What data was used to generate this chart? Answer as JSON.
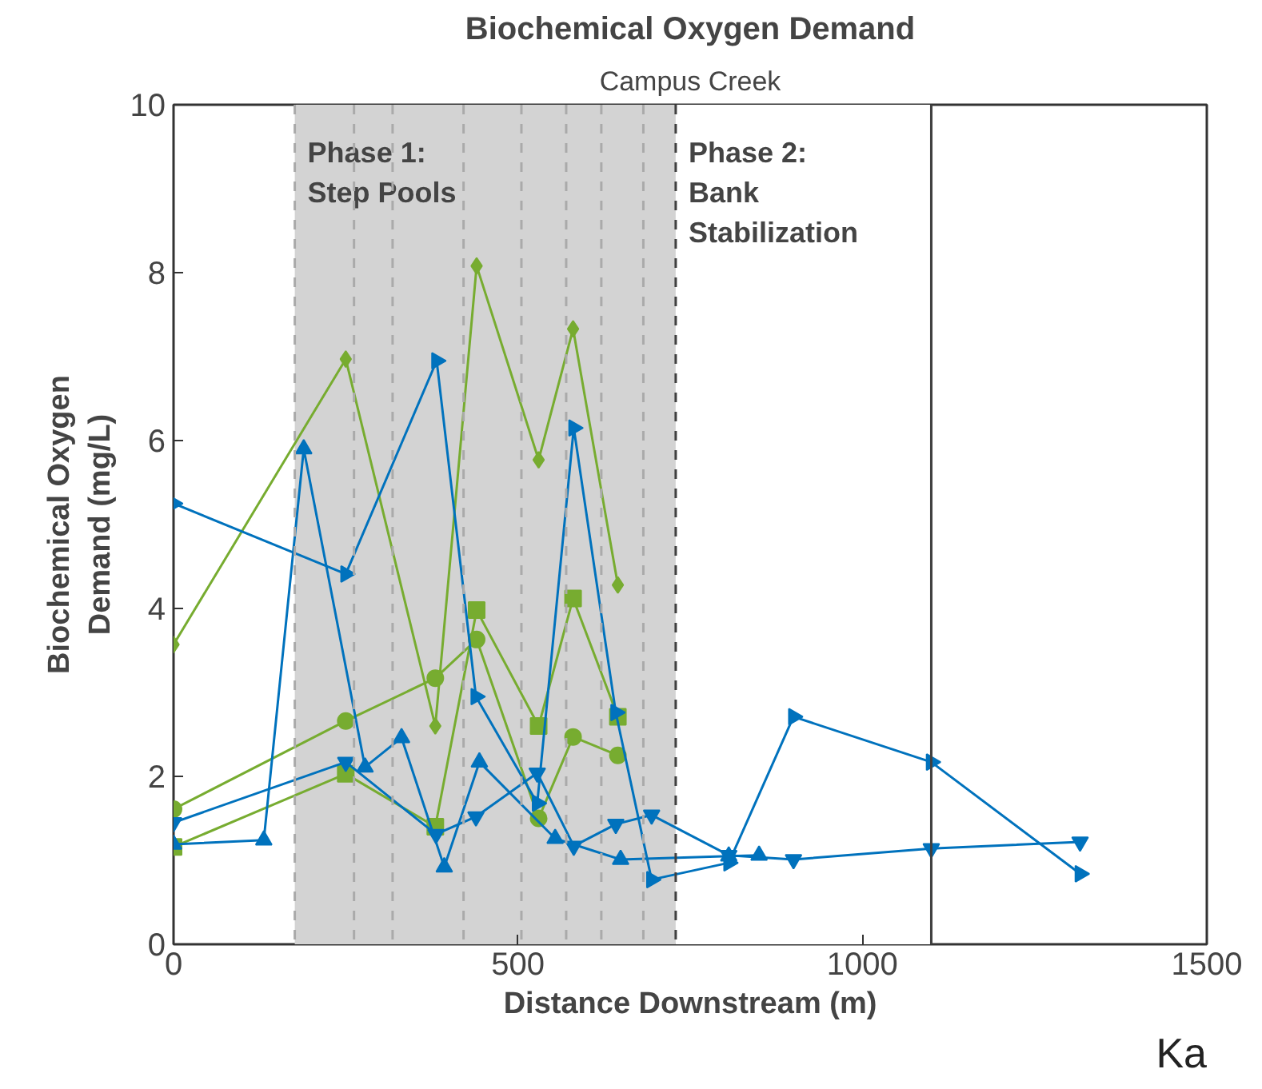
{
  "chart_data": {
    "type": "line",
    "title": "Biochemical Oxygen Demand",
    "subtitle": "Campus Creek",
    "xlabel": "Distance Downstream (m)",
    "ylabel": "Biochemical Oxygen\nDemand (mg/L)",
    "xlim": [
      0,
      1500
    ],
    "ylim": [
      0,
      10
    ],
    "xticks": [
      0,
      500,
      1000,
      1500
    ],
    "yticks": [
      0,
      2,
      4,
      6,
      8,
      10
    ],
    "grid": false,
    "series": [
      {
        "color": "#77ac30",
        "marker": "diamond",
        "x": [
          0,
          250,
          380,
          440,
          530,
          580,
          645
        ],
        "values": [
          3.57,
          6.97,
          2.6,
          8.08,
          5.77,
          7.33,
          4.28
        ]
      },
      {
        "color": "#77ac30",
        "marker": "square",
        "x": [
          0,
          250,
          380,
          440,
          530,
          580,
          645
        ],
        "values": [
          1.16,
          2.03,
          1.4,
          3.98,
          2.6,
          4.12,
          2.71
        ]
      },
      {
        "color": "#77ac30",
        "marker": "circle",
        "x": [
          0,
          250,
          380,
          440,
          530,
          580,
          645
        ],
        "values": [
          1.61,
          2.66,
          3.17,
          3.63,
          1.5,
          2.47,
          2.25
        ]
      },
      {
        "color": "#0072bd",
        "marker": "triangle_right",
        "x": [
          0,
          250,
          382,
          439,
          528,
          581,
          642,
          694,
          806,
          900,
          1100,
          1316
        ],
        "values": [
          5.25,
          4.41,
          6.95,
          2.95,
          1.68,
          6.15,
          2.76,
          0.77,
          0.97,
          2.71,
          2.17,
          0.84
        ]
      },
      {
        "color": "#0072bd",
        "marker": "triangle",
        "x": [
          0,
          131,
          189,
          278,
          331,
          393,
          444,
          554,
          649,
          806,
          850
        ],
        "values": [
          1.19,
          1.24,
          5.9,
          2.11,
          2.46,
          0.92,
          2.17,
          1.26,
          1.01,
          1.05,
          1.06
        ]
      },
      {
        "color": "#0072bd",
        "marker": "triangle_down",
        "x": [
          0,
          250,
          381,
          439,
          528,
          581,
          642,
          694,
          806,
          900,
          1100,
          1316
        ],
        "values": [
          1.45,
          2.17,
          1.31,
          1.52,
          2.04,
          1.17,
          1.43,
          1.54,
          1.06,
          1.01,
          1.14,
          1.22
        ]
      }
    ],
    "bands": [
      {
        "axis": "x",
        "from": 176,
        "to": 729,
        "label": "Phase 1:\nStep Pools",
        "color": "#d3d3d3"
      },
      {
        "axis": "x",
        "from": 729,
        "to": 1100,
        "label": "Phase 2:\nBank\nStabilization",
        "color": "#ffffff"
      }
    ],
    "ref_lines": [
      {
        "axis": "x",
        "value": 176,
        "color": "#aaaaaa",
        "line_style": "dashed"
      },
      {
        "axis": "x",
        "value": 262,
        "color": "#aaaaaa",
        "line_style": "dashed"
      },
      {
        "axis": "x",
        "value": 318,
        "color": "#aaaaaa",
        "line_style": "dashed"
      },
      {
        "axis": "x",
        "value": 421,
        "color": "#aaaaaa",
        "line_style": "dashed"
      },
      {
        "axis": "x",
        "value": 505,
        "color": "#aaaaaa",
        "line_style": "dashed"
      },
      {
        "axis": "x",
        "value": 570,
        "color": "#aaaaaa",
        "line_style": "dashed"
      },
      {
        "axis": "x",
        "value": 621,
        "color": "#aaaaaa",
        "line_style": "dashed"
      },
      {
        "axis": "x",
        "value": 682,
        "color": "#aaaaaa",
        "line_style": "dashed"
      },
      {
        "axis": "x",
        "value": 729,
        "color": "#404040",
        "line_style": "dashed"
      },
      {
        "axis": "x",
        "value": 1100,
        "color": "#404040",
        "line_style": "solid"
      }
    ],
    "annotations": [
      "Ka"
    ]
  }
}
